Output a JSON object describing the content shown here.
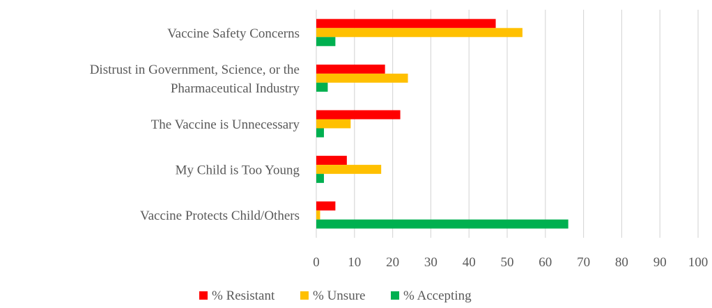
{
  "chart_data": {
    "type": "bar",
    "orientation": "horizontal",
    "categories": [
      [
        "Vaccine Safety Concerns"
      ],
      [
        "Distrust in Government, Science, or the",
        "Pharmaceutical Industry"
      ],
      [
        "The Vaccine is Unnecessary"
      ],
      [
        "My Child is Too Young"
      ],
      [
        "Vaccine Protects Child/Others"
      ]
    ],
    "series": [
      {
        "name": "% Resistant",
        "color": "#ff0000",
        "values": [
          47,
          18,
          22,
          8,
          5
        ]
      },
      {
        "name": "% Unsure",
        "color": "#ffc000",
        "values": [
          54,
          24,
          9,
          17,
          1
        ]
      },
      {
        "name": "% Accepting",
        "color": "#00b050",
        "values": [
          5,
          3,
          2,
          2,
          66
        ]
      }
    ],
    "xlim": [
      0,
      100
    ],
    "xticks": [
      0,
      10,
      20,
      30,
      40,
      50,
      60,
      70,
      80,
      90,
      100
    ],
    "title": "",
    "xlabel": "",
    "ylabel": "",
    "grid": "vertical",
    "legend": "bottom-center",
    "grid_color": "#d9d9d9",
    "text_color": "#595959"
  }
}
